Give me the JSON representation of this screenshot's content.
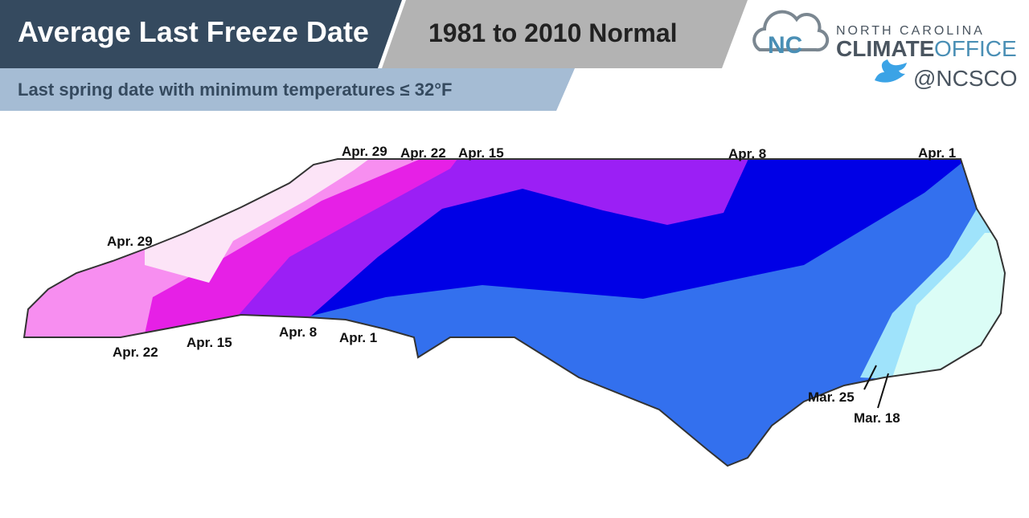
{
  "header": {
    "title": "Average Last Freeze Date",
    "subtitle": "1981 to 2010 Normal",
    "description": "Last spring date with minimum temperatures ≤ 32°F"
  },
  "logo": {
    "line1": "NORTH CAROLINA",
    "line2a": "CLIMATE",
    "line2b": "OFFICE",
    "handle": "@NCSCO"
  },
  "map": {
    "labels": [
      "Apr. 29",
      "Apr. 22",
      "Apr. 15",
      "Apr. 8",
      "Apr. 1",
      "Apr. 29",
      "Apr. 22",
      "Apr. 15",
      "Apr. 8",
      "Apr. 1",
      "Mar. 25",
      "Mar. 18"
    ]
  }
}
